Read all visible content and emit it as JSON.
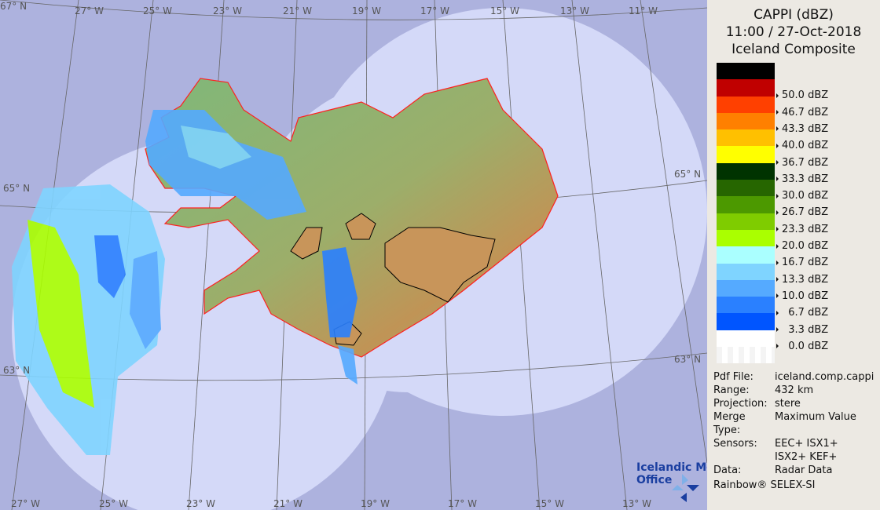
{
  "title": {
    "line1": "CAPPI (dBZ)",
    "line2": "11:00 / 27-Oct-2018",
    "line3": "Iceland Composite"
  },
  "legend": [
    {
      "color": "#000000",
      "label": ""
    },
    {
      "color": "#c00000",
      "label": "50.0 dBZ"
    },
    {
      "color": "#ff4000",
      "label": "46.7 dBZ"
    },
    {
      "color": "#ff8000",
      "label": "43.3 dBZ"
    },
    {
      "color": "#ffc000",
      "label": "40.0 dBZ"
    },
    {
      "color": "#ffff00",
      "label": "36.7 dBZ"
    },
    {
      "color": "#003300",
      "label": "33.3 dBZ"
    },
    {
      "color": "#266600",
      "label": "30.0 dBZ"
    },
    {
      "color": "#4c9900",
      "label": "26.7 dBZ"
    },
    {
      "color": "#7fcc00",
      "label": "23.3 dBZ"
    },
    {
      "color": "#aaff00",
      "label": "20.0 dBZ"
    },
    {
      "color": "#aaffff",
      "label": "16.7 dBZ"
    },
    {
      "color": "#7fd4ff",
      "label": "13.3 dBZ"
    },
    {
      "color": "#55aaff",
      "label": "10.0 dBZ"
    },
    {
      "color": "#2a80ff",
      "label": "  6.7 dBZ"
    },
    {
      "color": "#0055ff",
      "label": "  3.3 dBZ"
    },
    {
      "color": "#ffffff",
      "label": "  0.0 dBZ"
    }
  ],
  "info": [
    {
      "key": "Pdf File:",
      "value": "iceland.comp.cappi"
    },
    {
      "key": "Range:",
      "value": "432 km"
    },
    {
      "key": "Projection:",
      "value": "stere"
    },
    {
      "key": "Merge Type:",
      "value": "Maximum Value"
    },
    {
      "key": "Sensors:",
      "value": "EEC+ ISX1+"
    },
    {
      "key": "",
      "value": "ISX2+ KEF+"
    },
    {
      "key": "Data:",
      "value": "Radar Data"
    }
  ],
  "software": "Rainbow® SELEX-SI",
  "logo": {
    "line1": "Icelandic Met",
    "line2": "Office"
  },
  "map": {
    "top_lon_labels": [
      "27° W",
      "25° W",
      "23° W",
      "21° W",
      "19° W",
      "17° W",
      "15° W",
      "13° W",
      "11° W"
    ],
    "bottom_lon_labels": [
      "27° W",
      "25° W",
      "23° W",
      "21° W",
      "19° W",
      "17° W",
      "15° W",
      "13° W"
    ],
    "lat_labels": {
      "n67": "67° N",
      "n65_left": "65° N",
      "n65_right": "65° N",
      "n63_left": "63° N",
      "n63_right": "63° N"
    },
    "colors": {
      "outside": "#adb2de",
      "coverage": "#d4d9f8",
      "coast": "#ff2020"
    }
  }
}
